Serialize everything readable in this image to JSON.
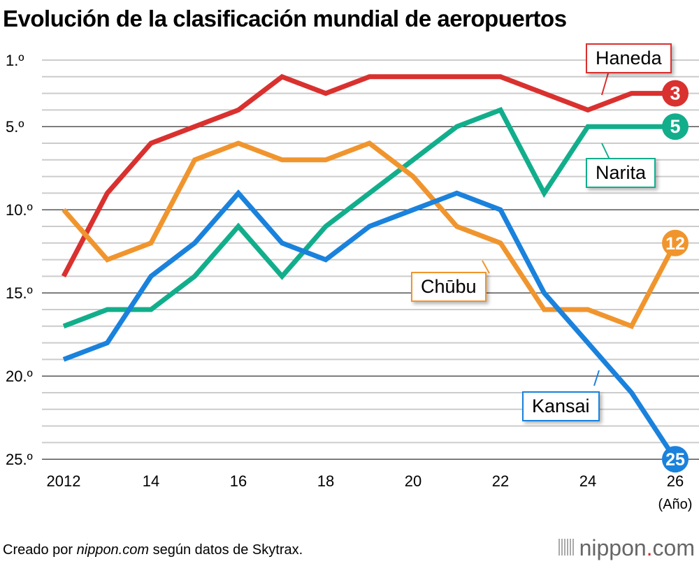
{
  "title": "Evolución de la clasificación mundial de aeropuertos",
  "source_prefix": "Creado por ",
  "source_italic": "nippon.com",
  "source_suffix": " según datos de Skytrax.",
  "logo": {
    "main": "nippon",
    "dot": ".",
    "tail": "com"
  },
  "chart_data": {
    "type": "line",
    "title": "Evolución de la clasificación mundial de aeropuertos",
    "xlabel": "(Año)",
    "ylabel": "",
    "x": [
      2012,
      2013,
      2014,
      2015,
      2016,
      2017,
      2018,
      2019,
      2020,
      2021,
      2022,
      2023,
      2024,
      2025,
      2026
    ],
    "x_tick_labels": [
      "2012",
      "14",
      "16",
      "18",
      "20",
      "22",
      "24",
      "26"
    ],
    "x_tick_values": [
      2012,
      2014,
      2016,
      2018,
      2020,
      2022,
      2024,
      2026
    ],
    "y_tick_labels": [
      "1.º",
      "5.º",
      "10.º",
      "15.º",
      "20.º",
      "25.º"
    ],
    "y_tick_values": [
      1,
      5,
      10,
      15,
      20,
      25
    ],
    "ylim": [
      1,
      25
    ],
    "y_inverted": true,
    "grid": true,
    "series": [
      {
        "name": "Haneda",
        "color": "#d9312f",
        "values": [
          14,
          9,
          6,
          5,
          4,
          2,
          3,
          2,
          2,
          2,
          2,
          3,
          4,
          3,
          3
        ],
        "end_label": "3"
      },
      {
        "name": "Narita",
        "color": "#12ae8c",
        "values": [
          17,
          16,
          16,
          14,
          11,
          14,
          11,
          9,
          7,
          5,
          4,
          9,
          5,
          5,
          5
        ],
        "end_label": "5"
      },
      {
        "name": "Chūbu",
        "color": "#f0952e",
        "values": [
          10,
          13,
          12,
          7,
          6,
          7,
          7,
          6,
          8,
          11,
          12,
          16,
          16,
          17,
          12
        ],
        "end_label": "12"
      },
      {
        "name": "Kansai",
        "color": "#1a82dc",
        "values": [
          19,
          18,
          14,
          12,
          9,
          12,
          13,
          11,
          10,
          9,
          10,
          15,
          18,
          21,
          25
        ],
        "end_label": "25"
      }
    ]
  }
}
